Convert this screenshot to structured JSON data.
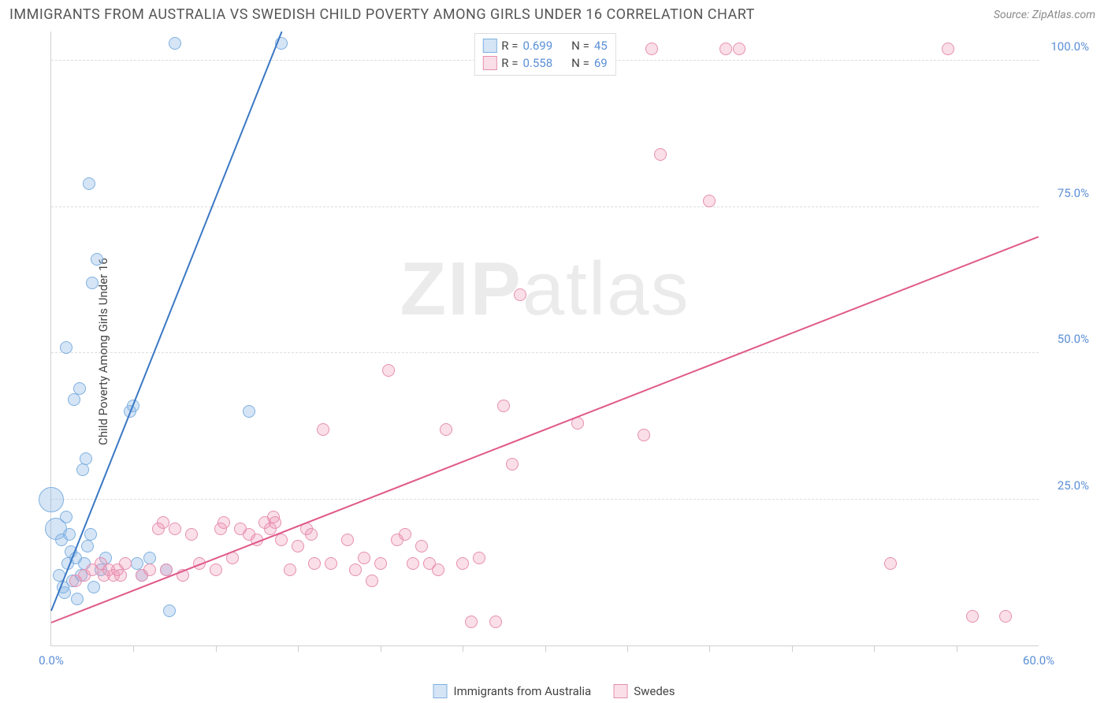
{
  "header": {
    "title": "IMMIGRANTS FROM AUSTRALIA VS SWEDISH CHILD POVERTY AMONG GIRLS UNDER 16 CORRELATION CHART",
    "source": "Source: ZipAtlas.com"
  },
  "chart": {
    "type": "scatter",
    "y_axis_label": "Child Poverty Among Girls Under 16",
    "x_axis_label_series1": "Immigrants from Australia",
    "x_axis_label_series2": "Swedes",
    "xlim": [
      0,
      60
    ],
    "ylim": [
      0,
      105
    ],
    "ytick_values": [
      25,
      50,
      75,
      100
    ],
    "ytick_labels": [
      "25.0%",
      "50.0%",
      "75.0%",
      "100.0%"
    ],
    "xtick_values": [
      0,
      60
    ],
    "xtick_labels": [
      "0.0%",
      "60.0%"
    ],
    "xtick_minor": [
      5,
      10,
      15,
      20,
      25,
      30,
      35,
      40,
      45,
      50,
      55
    ],
    "grid_color": "#dddddd",
    "background_color": "#ffffff",
    "tick_label_color": "#5b8fd6",
    "watermark_text_bold": "ZIP",
    "watermark_text_light": "atlas",
    "series": [
      {
        "name": "Immigrants from Australia",
        "fill": "rgba(135,180,230,0.35)",
        "stroke": "#7fb0e0",
        "line_color": "#3b78c4",
        "r_value": "0.699",
        "n_value": "45",
        "trend_start": {
          "x": 0,
          "y": 6
        },
        "trend_end": {
          "x": 14,
          "y": 105
        },
        "marker_radius": 8,
        "points": [
          {
            "x": 0.3,
            "y": 20,
            "r": 14
          },
          {
            "x": 0.0,
            "y": 25,
            "r": 16
          },
          {
            "x": 0.5,
            "y": 12
          },
          {
            "x": 0.8,
            "y": 9
          },
          {
            "x": 0.6,
            "y": 18
          },
          {
            "x": 1.0,
            "y": 14
          },
          {
            "x": 0.9,
            "y": 22
          },
          {
            "x": 1.2,
            "y": 16
          },
          {
            "x": 1.1,
            "y": 19
          },
          {
            "x": 0.7,
            "y": 10
          },
          {
            "x": 1.3,
            "y": 11
          },
          {
            "x": 1.5,
            "y": 15
          },
          {
            "x": 1.6,
            "y": 8
          },
          {
            "x": 1.8,
            "y": 12
          },
          {
            "x": 2.0,
            "y": 14
          },
          {
            "x": 2.2,
            "y": 17
          },
          {
            "x": 2.4,
            "y": 19
          },
          {
            "x": 2.6,
            "y": 10
          },
          {
            "x": 3.0,
            "y": 13
          },
          {
            "x": 3.3,
            "y": 15
          },
          {
            "x": 1.9,
            "y": 30
          },
          {
            "x": 2.1,
            "y": 32
          },
          {
            "x": 1.4,
            "y": 42
          },
          {
            "x": 1.7,
            "y": 44
          },
          {
            "x": 0.9,
            "y": 51
          },
          {
            "x": 2.5,
            "y": 62
          },
          {
            "x": 2.8,
            "y": 66
          },
          {
            "x": 2.3,
            "y": 79
          },
          {
            "x": 4.8,
            "y": 40
          },
          {
            "x": 5.0,
            "y": 41
          },
          {
            "x": 5.2,
            "y": 14
          },
          {
            "x": 5.5,
            "y": 12
          },
          {
            "x": 6.0,
            "y": 15
          },
          {
            "x": 7.0,
            "y": 13
          },
          {
            "x": 7.2,
            "y": 6
          },
          {
            "x": 12.0,
            "y": 40
          },
          {
            "x": 7.5,
            "y": 103
          },
          {
            "x": 14.0,
            "y": 103
          }
        ]
      },
      {
        "name": "Swedes",
        "fill": "rgba(240,150,180,0.30)",
        "stroke": "#e68fb0",
        "line_color": "#e05a8a",
        "r_value": "0.558",
        "n_value": "69",
        "trend_start": {
          "x": 0,
          "y": 4
        },
        "trend_end": {
          "x": 60,
          "y": 70
        },
        "marker_radius": 8,
        "points": [
          {
            "x": 1.5,
            "y": 11
          },
          {
            "x": 2.0,
            "y": 12
          },
          {
            "x": 2.5,
            "y": 13
          },
          {
            "x": 3.0,
            "y": 14
          },
          {
            "x": 3.2,
            "y": 12
          },
          {
            "x": 3.5,
            "y": 13
          },
          {
            "x": 3.8,
            "y": 12
          },
          {
            "x": 4.0,
            "y": 13
          },
          {
            "x": 4.2,
            "y": 12
          },
          {
            "x": 4.5,
            "y": 14
          },
          {
            "x": 5.5,
            "y": 12
          },
          {
            "x": 6.0,
            "y": 13
          },
          {
            "x": 6.5,
            "y": 20
          },
          {
            "x": 6.8,
            "y": 21
          },
          {
            "x": 7.0,
            "y": 13
          },
          {
            "x": 7.5,
            "y": 20
          },
          {
            "x": 8.0,
            "y": 12
          },
          {
            "x": 8.5,
            "y": 19
          },
          {
            "x": 9.0,
            "y": 14
          },
          {
            "x": 10.0,
            "y": 13
          },
          {
            "x": 10.3,
            "y": 20
          },
          {
            "x": 10.5,
            "y": 21
          },
          {
            "x": 11.0,
            "y": 15
          },
          {
            "x": 11.5,
            "y": 20
          },
          {
            "x": 12.0,
            "y": 19
          },
          {
            "x": 12.5,
            "y": 18
          },
          {
            "x": 13.0,
            "y": 21
          },
          {
            "x": 13.3,
            "y": 20
          },
          {
            "x": 13.5,
            "y": 22
          },
          {
            "x": 13.6,
            "y": 21
          },
          {
            "x": 14.0,
            "y": 18
          },
          {
            "x": 14.5,
            "y": 13
          },
          {
            "x": 15.0,
            "y": 17
          },
          {
            "x": 15.5,
            "y": 20
          },
          {
            "x": 15.8,
            "y": 19
          },
          {
            "x": 16.0,
            "y": 14
          },
          {
            "x": 16.5,
            "y": 37
          },
          {
            "x": 17.0,
            "y": 14
          },
          {
            "x": 18.0,
            "y": 18
          },
          {
            "x": 18.5,
            "y": 13
          },
          {
            "x": 19.0,
            "y": 15
          },
          {
            "x": 19.5,
            "y": 11
          },
          {
            "x": 20.0,
            "y": 14
          },
          {
            "x": 20.5,
            "y": 47
          },
          {
            "x": 21.0,
            "y": 18
          },
          {
            "x": 21.5,
            "y": 19
          },
          {
            "x": 22.0,
            "y": 14
          },
          {
            "x": 22.5,
            "y": 17
          },
          {
            "x": 23.0,
            "y": 14
          },
          {
            "x": 23.5,
            "y": 13
          },
          {
            "x": 24.0,
            "y": 37
          },
          {
            "x": 25.0,
            "y": 14
          },
          {
            "x": 25.5,
            "y": 4
          },
          {
            "x": 26.0,
            "y": 15
          },
          {
            "x": 27.0,
            "y": 4
          },
          {
            "x": 27.5,
            "y": 41
          },
          {
            "x": 28.0,
            "y": 31
          },
          {
            "x": 28.5,
            "y": 60
          },
          {
            "x": 32.0,
            "y": 38
          },
          {
            "x": 36.0,
            "y": 36
          },
          {
            "x": 37.0,
            "y": 84
          },
          {
            "x": 40.0,
            "y": 76
          },
          {
            "x": 27.0,
            "y": 102
          },
          {
            "x": 36.5,
            "y": 102
          },
          {
            "x": 41.0,
            "y": 102
          },
          {
            "x": 41.8,
            "y": 102
          },
          {
            "x": 51.0,
            "y": 14
          },
          {
            "x": 54.5,
            "y": 102
          },
          {
            "x": 56.0,
            "y": 5
          },
          {
            "x": 58.0,
            "y": 5
          }
        ]
      }
    ],
    "legend_top": {
      "r_label": "R =",
      "n_label": "N ="
    }
  }
}
